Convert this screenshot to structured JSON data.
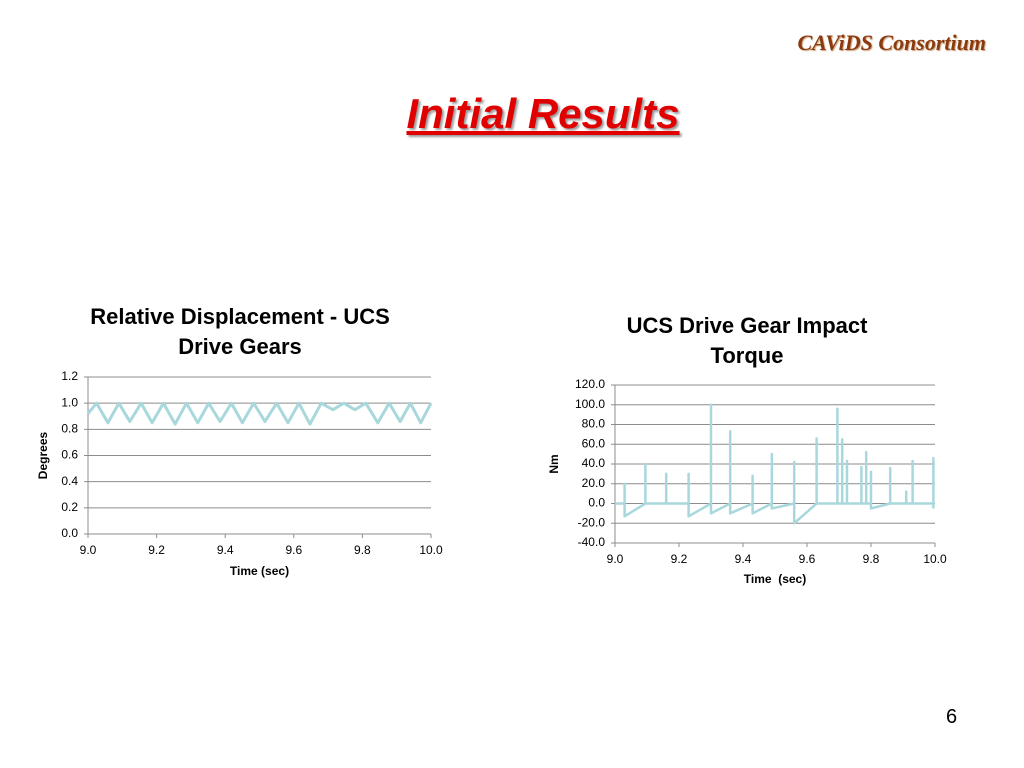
{
  "header": {
    "brand": "CAViDS Consortium",
    "title": "Initial Results",
    "page_number": "6"
  },
  "chart_data": [
    {
      "type": "line",
      "title": "Relative Displacement - UCS Drive Gears",
      "x_label": "Time (sec)",
      "y_label": "Degrees",
      "x": [
        9.0,
        9.025,
        9.058,
        9.09,
        9.122,
        9.155,
        9.187,
        9.22,
        9.254,
        9.287,
        9.32,
        9.352,
        9.385,
        9.418,
        9.45,
        9.483,
        9.516,
        9.55,
        9.583,
        9.615,
        9.647,
        9.68,
        9.714,
        9.746,
        9.778,
        9.81,
        9.845,
        9.878,
        9.91,
        9.94,
        9.97,
        10.0
      ],
      "series": [
        {
          "color": "#a8d8dc",
          "values": [
            0.92,
            1.0,
            0.85,
            1.0,
            0.86,
            1.0,
            0.85,
            1.0,
            0.84,
            1.0,
            0.85,
            1.0,
            0.86,
            1.0,
            0.85,
            1.0,
            0.86,
            1.0,
            0.85,
            1.0,
            0.84,
            1.0,
            0.95,
            1.0,
            0.95,
            1.0,
            0.85,
            1.0,
            0.86,
            1.0,
            0.85,
            1.0
          ]
        }
      ],
      "xlim": [
        9.0,
        10.0
      ],
      "ylim": [
        0,
        1.2
      ],
      "xticks": [
        {
          "value": 9,
          "label": "9.0"
        },
        9.2,
        9.4,
        9.6,
        9.8,
        {
          "value": 10,
          "label": "10.0"
        }
      ],
      "yticks": [
        {
          "value": 0,
          "label": "0.0"
        },
        0.2,
        0.4,
        0.6,
        0.8,
        {
          "value": 1,
          "label": "1.0"
        },
        1.2
      ],
      "grid": true
    },
    {
      "type": "line",
      "title": "UCS Drive Gear Impact Torque",
      "x_label": "Time  (sec)",
      "y_label": "Nm",
      "x": [
        9.0,
        9.03,
        9.03,
        9.03,
        9.095,
        9.095,
        9.095,
        9.16,
        9.16,
        9.16,
        9.23,
        9.23,
        9.23,
        9.3,
        9.3,
        9.3,
        9.36,
        9.36,
        9.36,
        9.43,
        9.43,
        9.43,
        9.49,
        9.49,
        9.49,
        9.56,
        9.56,
        9.56,
        9.63,
        9.63,
        9.63,
        9.695,
        9.695,
        9.695,
        9.71,
        9.71,
        9.71,
        9.725,
        9.725,
        9.725,
        9.77,
        9.77,
        9.77,
        9.785,
        9.785,
        9.785,
        9.8,
        9.8,
        9.8,
        9.86,
        9.86,
        9.86,
        9.91,
        9.91,
        9.91,
        9.93,
        9.93,
        9.93,
        9.995,
        9.995,
        9.995
      ],
      "series": [
        {
          "color": "#a8d8dc",
          "values": [
            0,
            0,
            20,
            -13,
            0,
            40,
            0,
            0,
            30,
            0,
            0,
            30,
            -13,
            0,
            100,
            -10,
            0,
            73,
            -10,
            0,
            28,
            -10,
            0,
            50,
            -5,
            0,
            42,
            -20,
            0,
            66,
            0,
            0,
            96,
            0,
            0,
            65,
            0,
            0,
            43,
            0,
            0,
            37,
            0,
            0,
            52,
            0,
            0,
            32,
            -5,
            0,
            36,
            0,
            0,
            12,
            0,
            0,
            43,
            0,
            0,
            46,
            -5
          ]
        }
      ],
      "xlim": [
        9.0,
        10.0
      ],
      "ylim": [
        -40,
        120
      ],
      "xticks": [
        {
          "value": 9,
          "label": "9.0"
        },
        9.2,
        9.4,
        9.6,
        9.8,
        {
          "value": 10,
          "label": "10.0"
        }
      ],
      "yticks": [
        {
          "value": -40,
          "label": "-40.0"
        },
        {
          "value": -20,
          "label": "-20.0"
        },
        {
          "value": 0,
          "label": "0.0"
        },
        {
          "value": 20,
          "label": "20.0"
        },
        {
          "value": 40,
          "label": "40.0"
        },
        {
          "value": 60,
          "label": "60.0"
        },
        {
          "value": 80,
          "label": "80.0"
        },
        {
          "value": 100,
          "label": "100.0"
        },
        {
          "value": 120,
          "label": "120.0"
        }
      ],
      "grid": true
    }
  ]
}
